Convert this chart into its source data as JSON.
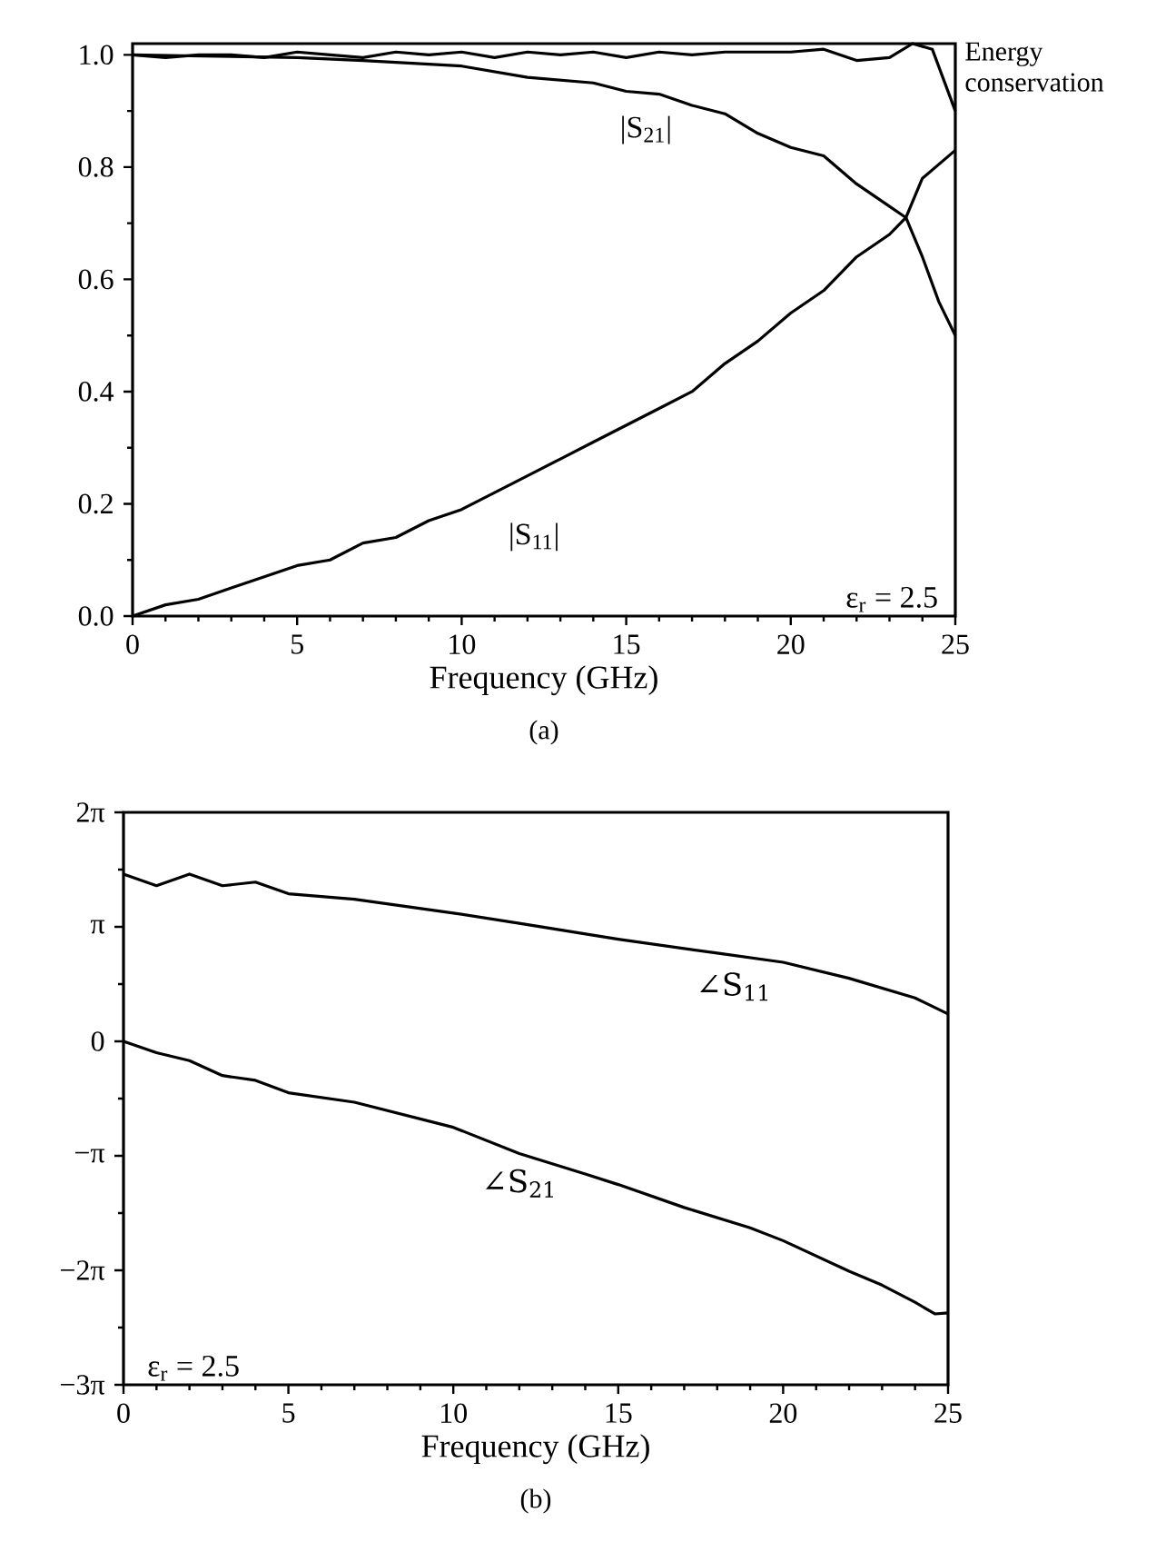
{
  "chart_data": [
    {
      "type": "line",
      "xlabel": "Frequency (GHz)",
      "xlim": [
        0,
        25
      ],
      "xticks": [
        0,
        5,
        10,
        15,
        20,
        25
      ],
      "ylim": [
        0,
        1.02
      ],
      "yticks": [
        {
          "value": 0,
          "label": "0.0"
        },
        {
          "value": 0.2,
          "label": "0.2"
        },
        {
          "value": 0.4,
          "label": "0.4"
        },
        {
          "value": 0.6,
          "label": "0.6"
        },
        {
          "value": 0.8,
          "label": "0.8"
        },
        {
          "value": 1.0,
          "label": "1.0"
        }
      ],
      "marker": "none",
      "annotations": [
        "ε$_{r}$ = 2.5",
        "(a)"
      ],
      "series": [
        {
          "name": "Energy conservation",
          "color": "#000000",
          "x": [
            0,
            1,
            2,
            3,
            4,
            5,
            6,
            7,
            8,
            9,
            10,
            11,
            12,
            13,
            14,
            15,
            16,
            17,
            18,
            19,
            20,
            21,
            22,
            23,
            23.7,
            24.3,
            25
          ],
          "values": [
            1.0,
            0.995,
            1.0,
            1.0,
            0.995,
            1.005,
            1.0,
            0.995,
            1.005,
            1.0,
            1.005,
            0.995,
            1.005,
            1.0,
            1.005,
            0.995,
            1.005,
            1.0,
            1.005,
            1.005,
            1.005,
            1.01,
            0.99,
            0.995,
            1.02,
            1.01,
            0.9
          ]
        },
        {
          "name": "|S$_{21}$|",
          "color": "#000000",
          "x": [
            0,
            5,
            7,
            10,
            12,
            14,
            15,
            16,
            17,
            18,
            19,
            20,
            21,
            22,
            23,
            23.5,
            24,
            24.5,
            25
          ],
          "values": [
            1.0,
            0.995,
            0.99,
            0.98,
            0.96,
            0.95,
            0.935,
            0.93,
            0.91,
            0.895,
            0.86,
            0.835,
            0.82,
            0.77,
            0.73,
            0.71,
            0.64,
            0.56,
            0.5
          ]
        },
        {
          "name": "|S$_{11}$|",
          "color": "#000000",
          "x": [
            0,
            1,
            2,
            3,
            4,
            5,
            6,
            7,
            8,
            9,
            10,
            11,
            12,
            13,
            14,
            15,
            16,
            17,
            18,
            19,
            20,
            21,
            22,
            23,
            23.5,
            24,
            25
          ],
          "values": [
            0,
            0.02,
            0.03,
            0.05,
            0.07,
            0.09,
            0.1,
            0.13,
            0.14,
            0.17,
            0.19,
            0.22,
            0.25,
            0.28,
            0.31,
            0.34,
            0.37,
            0.4,
            0.45,
            0.49,
            0.54,
            0.58,
            0.64,
            0.68,
            0.71,
            0.78,
            0.83
          ]
        }
      ]
    },
    {
      "type": "line",
      "xlabel": "Frequency (GHz)",
      "xlim": [
        0,
        25
      ],
      "xticks": [
        0,
        5,
        10,
        15,
        20,
        25
      ],
      "ylim": [
        -9.4248,
        6.2832
      ],
      "yticks": [
        {
          "value": 6.2832,
          "label": "2π"
        },
        {
          "value": 3.1416,
          "label": "π"
        },
        0,
        {
          "value": -3.1416,
          "label": "−π"
        },
        {
          "value": -6.2832,
          "label": "−2π"
        },
        {
          "value": -9.4248,
          "label": "−3π"
        }
      ],
      "marker": "none",
      "annotations": [
        "ε$_{r}$ = 2.5",
        "(b)"
      ],
      "series": [
        {
          "name": "∠S$_{11}$",
          "color": "#000000",
          "x": [
            0,
            1,
            2,
            3,
            4,
            5,
            7,
            10,
            12,
            15,
            18,
            20,
            22,
            24,
            25
          ],
          "values": [
            4.59,
            4.27,
            4.59,
            4.27,
            4.37,
            4.05,
            3.9,
            3.52,
            3.24,
            2.8,
            2.42,
            2.17,
            1.73,
            1.19,
            0.75
          ]
        },
        {
          "name": "∠S$_{21}$",
          "color": "#000000",
          "x": [
            0,
            1,
            2,
            3,
            4,
            5,
            7,
            10,
            12,
            14,
            15,
            17,
            19,
            20,
            22,
            23,
            24,
            24.6,
            25
          ],
          "values": [
            0,
            -0.31,
            -0.53,
            -0.94,
            -1.07,
            -1.41,
            -1.67,
            -2.36,
            -3.08,
            -3.64,
            -3.93,
            -4.56,
            -5.12,
            -5.47,
            -6.31,
            -6.69,
            -7.16,
            -7.48,
            -7.45
          ]
        }
      ]
    }
  ]
}
